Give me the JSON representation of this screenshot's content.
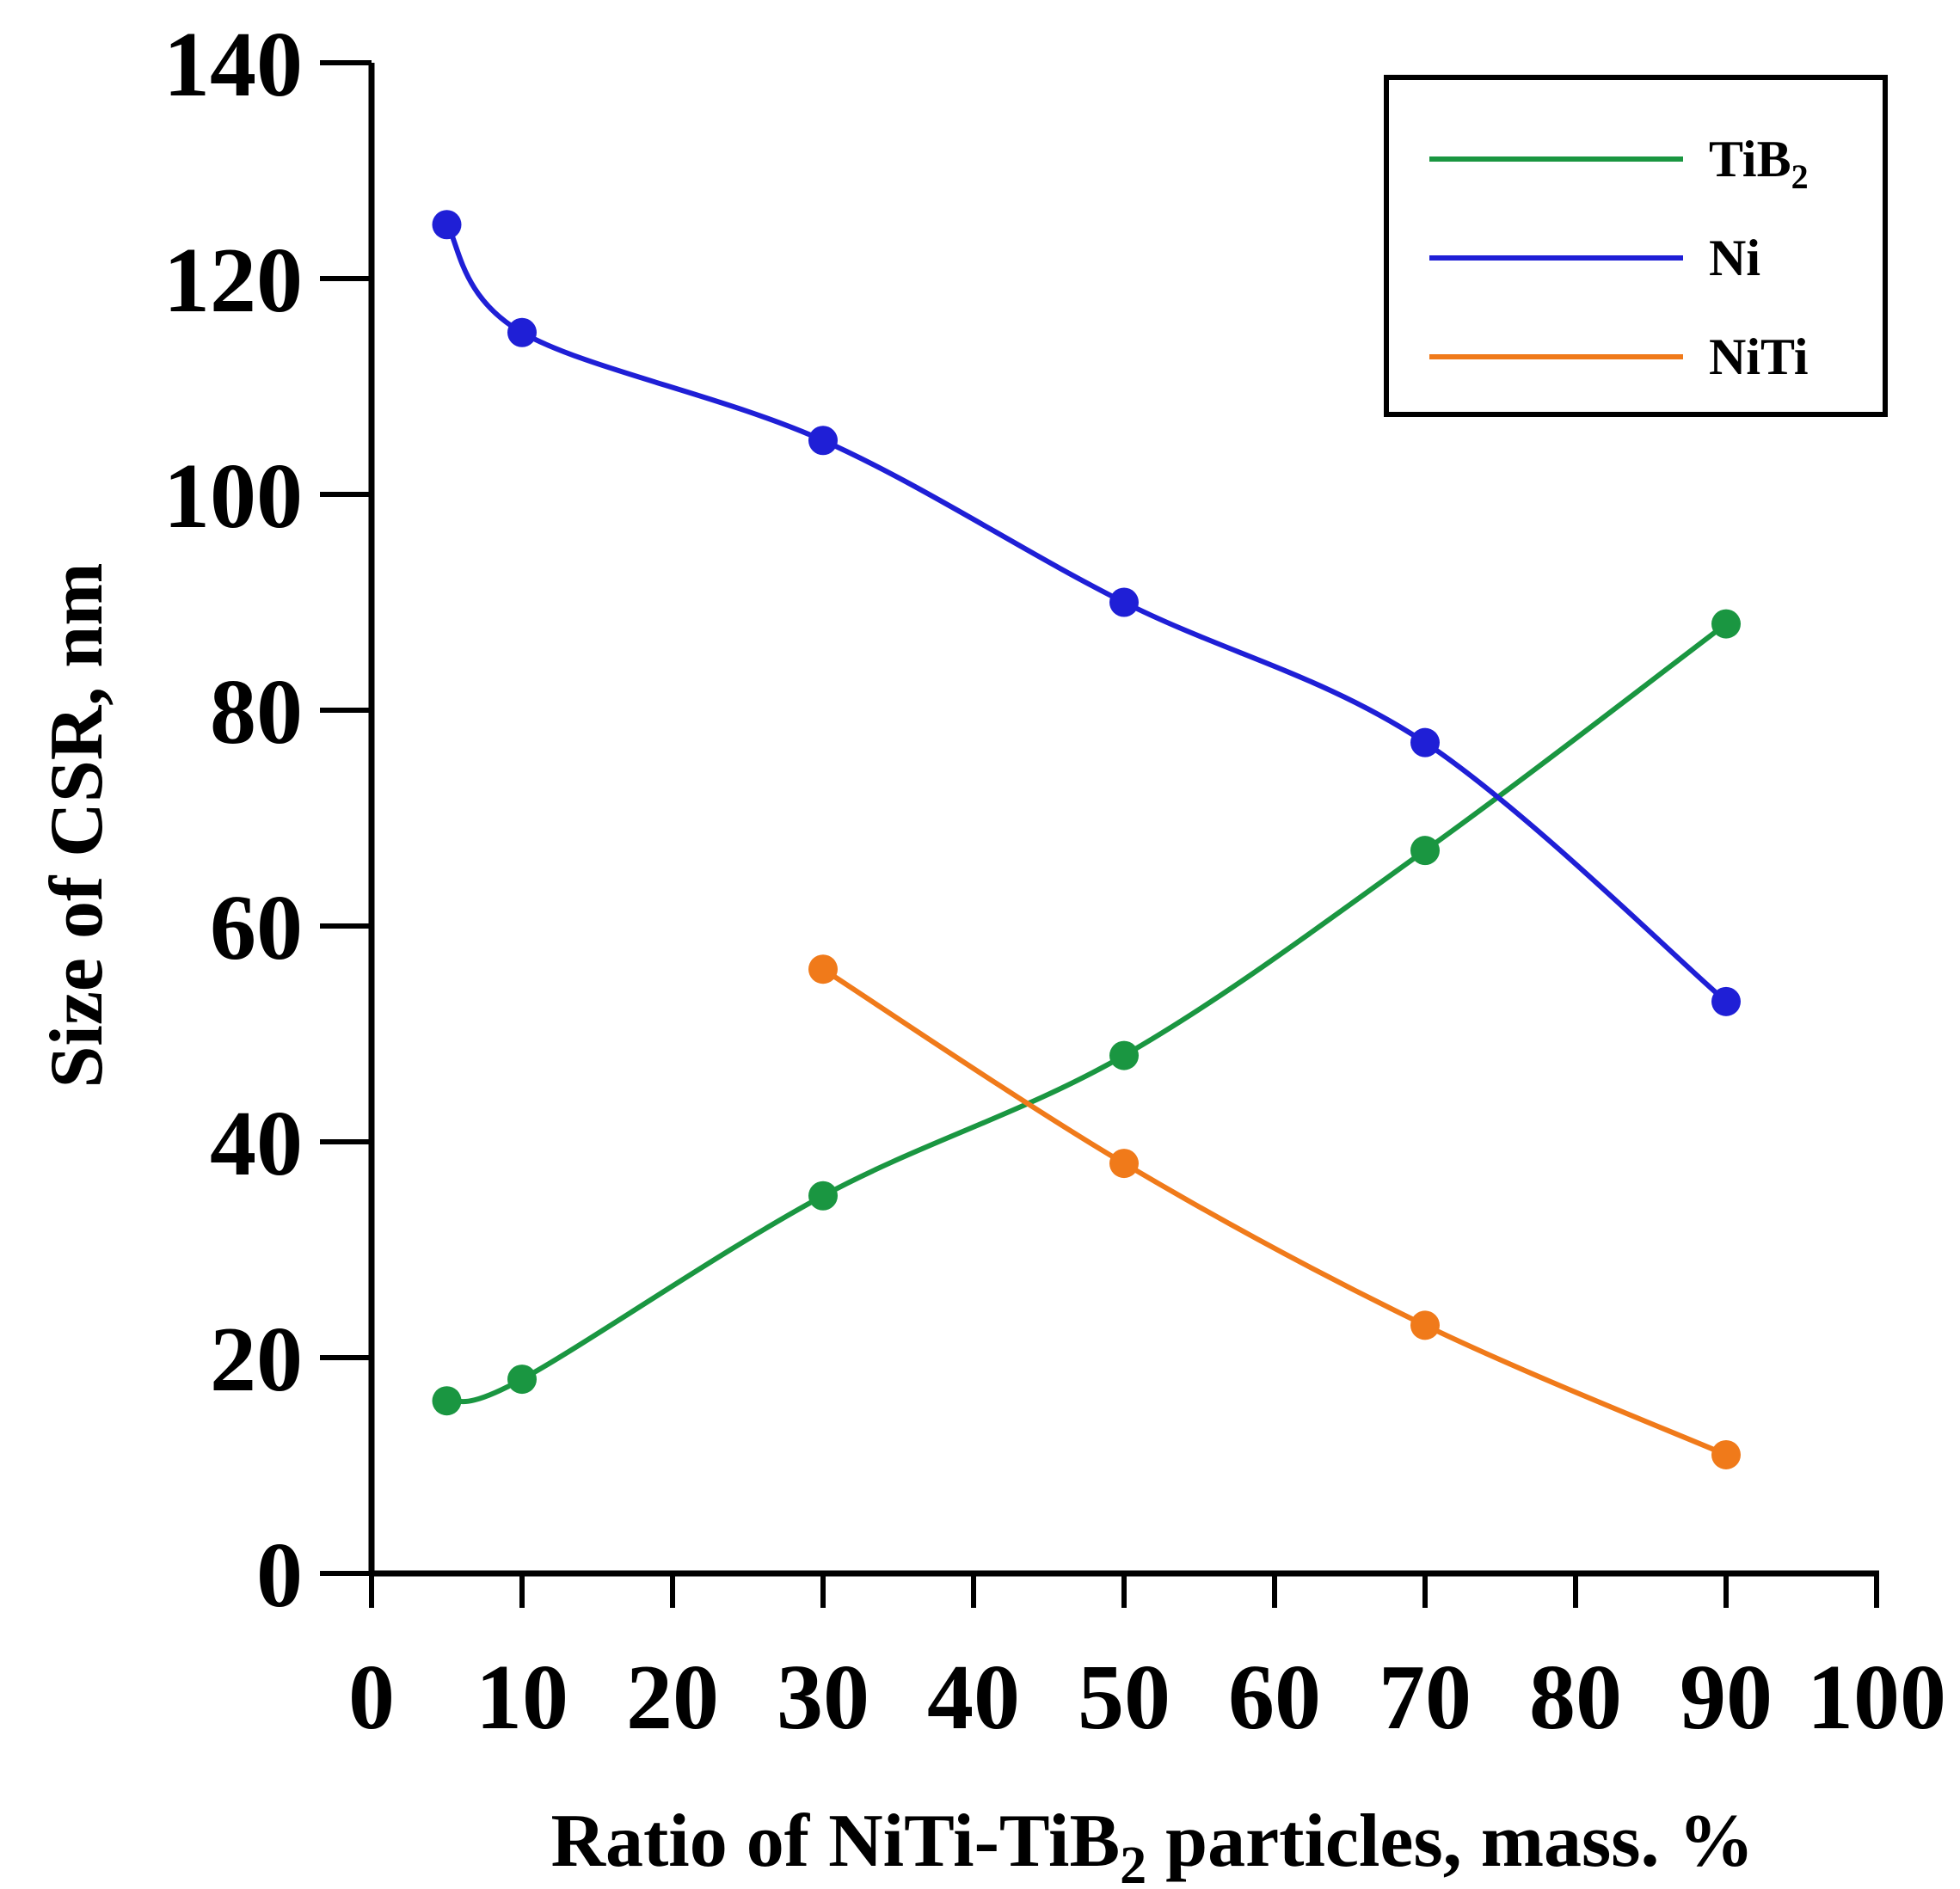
{
  "chart_data": {
    "type": "line",
    "title": "",
    "xlabel": "Ratio of NiTi-TiB",
    "xlabel_subscript": "2",
    "xlabel_suffix": " particles, mass. %",
    "ylabel": "Size of CSR, nm",
    "xlim": [
      0,
      100
    ],
    "ylim": [
      0,
      140
    ],
    "xticks": [
      0,
      10,
      20,
      30,
      40,
      50,
      60,
      70,
      80,
      90,
      100
    ],
    "yticks": [
      0,
      20,
      40,
      60,
      80,
      100,
      120,
      140
    ],
    "grid": false,
    "legend_position": "top-right",
    "series": [
      {
        "name": "TiB",
        "name_subscript": "2",
        "color": "#1a9641",
        "x": [
          5,
          10,
          30,
          50,
          70,
          90
        ],
        "y": [
          16,
          18,
          35,
          48,
          67,
          88
        ]
      },
      {
        "name": "Ni",
        "name_subscript": "",
        "color": "#1f1fd6",
        "x": [
          5,
          10,
          30,
          50,
          70,
          90
        ],
        "y": [
          125,
          115,
          105,
          90,
          77,
          53
        ]
      },
      {
        "name": "NiTi",
        "name_subscript": "",
        "color": "#f07a1a",
        "x": [
          30,
          50,
          70,
          90
        ],
        "y": [
          56,
          38,
          23,
          11
        ]
      }
    ]
  }
}
